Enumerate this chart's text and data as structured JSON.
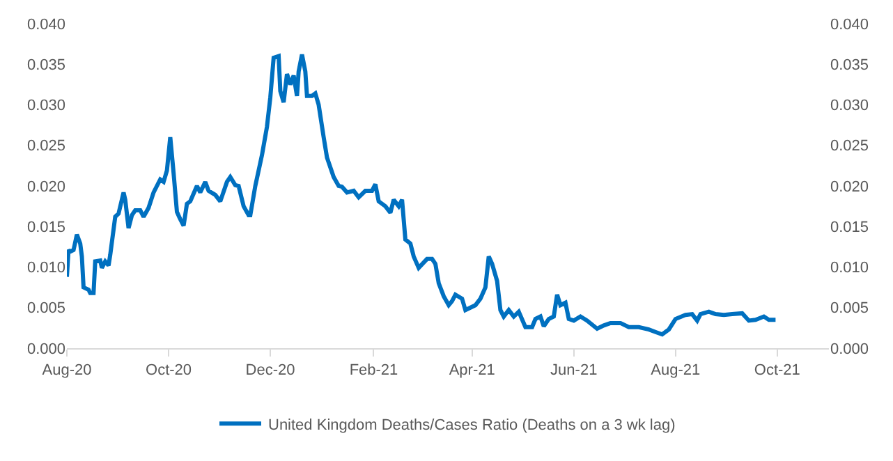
{
  "chart_data": {
    "type": "line",
    "x": [
      "2020-08-01",
      "2020-08-02",
      "2020-08-03",
      "2020-08-05",
      "2020-08-07",
      "2020-08-09",
      "2020-08-10",
      "2020-08-11",
      "2020-08-14",
      "2020-08-15",
      "2020-08-17",
      "2020-08-18",
      "2020-08-21",
      "2020-08-22",
      "2020-08-24",
      "2020-08-26",
      "2020-08-27",
      "2020-08-30",
      "2020-09-01",
      "2020-09-04",
      "2020-09-05",
      "2020-09-07",
      "2020-09-09",
      "2020-09-11",
      "2020-09-14",
      "2020-09-16",
      "2020-09-19",
      "2020-09-22",
      "2020-09-24",
      "2020-09-26",
      "2020-09-28",
      "2020-09-30",
      "2020-10-02",
      "2020-10-04",
      "2020-10-06",
      "2020-10-08",
      "2020-10-10",
      "2020-10-12",
      "2020-10-14",
      "2020-10-18",
      "2020-10-20",
      "2020-10-23",
      "2020-10-25",
      "2020-10-29",
      "2020-11-01",
      "2020-11-05",
      "2020-11-07",
      "2020-11-10",
      "2020-11-12",
      "2020-11-15",
      "2020-11-18",
      "2020-11-19",
      "2020-11-22",
      "2020-11-24",
      "2020-11-26",
      "2020-11-29",
      "2020-12-01",
      "2020-12-03",
      "2020-12-06",
      "2020-12-07",
      "2020-12-09",
      "2020-12-11",
      "2020-12-13",
      "2020-12-15",
      "2020-12-17",
      "2020-12-18",
      "2020-12-20",
      "2020-12-22",
      "2020-12-23",
      "2020-12-26",
      "2020-12-28",
      "2020-12-30",
      "2021-01-02",
      "2021-01-04",
      "2021-01-08",
      "2021-01-11",
      "2021-01-13",
      "2021-01-16",
      "2021-01-20",
      "2021-01-23",
      "2021-01-27",
      "2021-01-31",
      "2021-02-02",
      "2021-02-04",
      "2021-02-08",
      "2021-02-11",
      "2021-02-13",
      "2021-02-16",
      "2021-02-18",
      "2021-02-20",
      "2021-02-23",
      "2021-02-25",
      "2021-02-28",
      "2021-03-05",
      "2021-03-08",
      "2021-03-10",
      "2021-03-12",
      "2021-03-15",
      "2021-03-18",
      "2021-03-20",
      "2021-03-22",
      "2021-03-26",
      "2021-03-28",
      "2021-04-03",
      "2021-04-06",
      "2021-04-09",
      "2021-04-11",
      "2021-04-13",
      "2021-04-16",
      "2021-04-18",
      "2021-04-20",
      "2021-04-23",
      "2021-04-26",
      "2021-04-29",
      "2021-05-03",
      "2021-05-07",
      "2021-05-09",
      "2021-05-12",
      "2021-05-14",
      "2021-05-17",
      "2021-05-20",
      "2021-05-22",
      "2021-05-24",
      "2021-05-27",
      "2021-05-29",
      "2021-06-01",
      "2021-06-05",
      "2021-06-09",
      "2021-06-15",
      "2021-06-19",
      "2021-06-23",
      "2021-06-29",
      "2021-07-04",
      "2021-07-10",
      "2021-07-16",
      "2021-07-20",
      "2021-07-24",
      "2021-07-28",
      "2021-08-01",
      "2021-08-07",
      "2021-08-11",
      "2021-08-14",
      "2021-08-16",
      "2021-08-21",
      "2021-08-25",
      "2021-08-30",
      "2021-09-04",
      "2021-09-10",
      "2021-09-14",
      "2021-09-18",
      "2021-09-23",
      "2021-09-26",
      "2021-09-30"
    ],
    "series": [
      {
        "name": "United Kingdom Deaths/Cases Ratio (Deaths on a 3 wk lag)",
        "color": "#0070c0",
        "values": [
          0.0088,
          0.0121,
          0.0119,
          0.0121,
          0.014,
          0.0129,
          0.0113,
          0.0075,
          0.0072,
          0.0068,
          0.0068,
          0.0107,
          0.0108,
          0.0099,
          0.0107,
          0.0102,
          0.0115,
          0.0162,
          0.0166,
          0.0192,
          0.0183,
          0.0148,
          0.0164,
          0.017,
          0.017,
          0.0162,
          0.0173,
          0.0192,
          0.02,
          0.0208,
          0.0205,
          0.0219,
          0.026,
          0.0216,
          0.0168,
          0.0159,
          0.0151,
          0.0178,
          0.0181,
          0.02,
          0.0192,
          0.0205,
          0.0194,
          0.0189,
          0.0181,
          0.0205,
          0.0211,
          0.0201,
          0.02,
          0.0175,
          0.0164,
          0.0164,
          0.02,
          0.0219,
          0.0238,
          0.0273,
          0.0309,
          0.0358,
          0.036,
          0.0317,
          0.0303,
          0.0338,
          0.0325,
          0.0336,
          0.0311,
          0.0341,
          0.0362,
          0.0341,
          0.0311,
          0.0311,
          0.0314,
          0.03,
          0.026,
          0.0235,
          0.0211,
          0.02,
          0.0199,
          0.0192,
          0.0194,
          0.0186,
          0.0194,
          0.0194,
          0.0202,
          0.0181,
          0.0175,
          0.0167,
          0.0183,
          0.0175,
          0.0183,
          0.0134,
          0.0129,
          0.0113,
          0.0099,
          0.011,
          0.011,
          0.0104,
          0.008,
          0.0064,
          0.0053,
          0.0058,
          0.0066,
          0.0061,
          0.0047,
          0.0053,
          0.0061,
          0.0075,
          0.0113,
          0.0104,
          0.0083,
          0.0047,
          0.0039,
          0.0047,
          0.0039,
          0.0045,
          0.0026,
          0.0026,
          0.0036,
          0.0039,
          0.0027,
          0.0036,
          0.0039,
          0.0066,
          0.0053,
          0.0056,
          0.0036,
          0.0034,
          0.0039,
          0.0034,
          0.0024,
          0.0028,
          0.0031,
          0.0031,
          0.0026,
          0.0026,
          0.0023,
          0.002,
          0.0017,
          0.0023,
          0.0036,
          0.0041,
          0.0042,
          0.0034,
          0.0042,
          0.0045,
          0.0042,
          0.0041,
          0.0042,
          0.0043,
          0.0034,
          0.0035,
          0.0039,
          0.0035,
          0.0035
        ]
      }
    ],
    "xlim": [
      "2020-08-01",
      "2021-11-01"
    ],
    "xticks": [
      {
        "value": "2020-08-01",
        "label": "Aug-20"
      },
      {
        "value": "2020-10-01",
        "label": "Oct-20"
      },
      {
        "value": "2020-12-01",
        "label": "Dec-20"
      },
      {
        "value": "2021-02-01",
        "label": "Feb-21"
      },
      {
        "value": "2021-04-01",
        "label": "Apr-21"
      },
      {
        "value": "2021-06-01",
        "label": "Jun-21"
      },
      {
        "value": "2021-08-01",
        "label": "Aug-21"
      },
      {
        "value": "2021-10-01",
        "label": "Oct-21"
      }
    ],
    "ylim": [
      0,
      0.04
    ],
    "yticks": [
      {
        "value": 0,
        "label": "0.000"
      },
      {
        "value": 0.005,
        "label": "0.005"
      },
      {
        "value": 0.01,
        "label": "0.010"
      },
      {
        "value": 0.015,
        "label": "0.015"
      },
      {
        "value": 0.02,
        "label": "0.020"
      },
      {
        "value": 0.025,
        "label": "0.025"
      },
      {
        "value": 0.03,
        "label": "0.030"
      },
      {
        "value": 0.035,
        "label": "0.035"
      },
      {
        "value": 0.04,
        "label": "0.040"
      }
    ],
    "y2lim": [
      0,
      0.04
    ],
    "y2ticks": [
      {
        "value": 0,
        "label": "0.000"
      },
      {
        "value": 0.005,
        "label": "0.005"
      },
      {
        "value": 0.01,
        "label": "0.010"
      },
      {
        "value": 0.015,
        "label": "0.015"
      },
      {
        "value": 0.02,
        "label": "0.020"
      },
      {
        "value": 0.025,
        "label": "0.025"
      },
      {
        "value": 0.03,
        "label": "0.030"
      },
      {
        "value": 0.035,
        "label": "0.035"
      },
      {
        "value": 0.04,
        "label": "0.040"
      }
    ],
    "grid": false,
    "legend": "bottom",
    "marker": "none",
    "line_style": "solid"
  }
}
